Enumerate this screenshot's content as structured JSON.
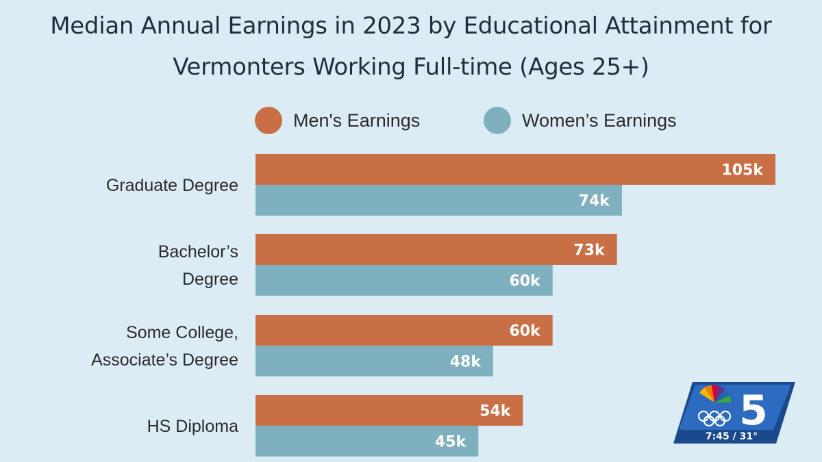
{
  "chart_data": {
    "type": "bar",
    "orientation": "horizontal",
    "title_lines": [
      "Median Annual Earnings in 2023 by Educational Attainment for",
      "Vermonters Working Full-time (Ages 25+)"
    ],
    "categories": [
      [
        "Graduate Degree"
      ],
      [
        "Bachelor’s",
        "Degree"
      ],
      [
        "Some College,",
        "Associate’s Degree"
      ],
      [
        "HS Diploma"
      ]
    ],
    "series": [
      {
        "name": "Men's Earnings",
        "color": "#c96f45",
        "values": [
          105,
          73,
          60,
          54
        ],
        "labels": [
          "105k",
          "73k",
          "60k",
          "54k"
        ]
      },
      {
        "name": "Women’s  Earnings",
        "color": "#7fb0bf",
        "values": [
          74,
          60,
          48,
          45
        ],
        "labels": [
          "74k",
          "60k",
          "48k",
          "45k"
        ]
      }
    ],
    "value_unit": "thousand USD",
    "xlim": [
      0,
      105
    ],
    "legend_position": "top",
    "grid": false
  },
  "overlay": {
    "channel_number": "5",
    "time_temp": "7:45 / 31°"
  }
}
